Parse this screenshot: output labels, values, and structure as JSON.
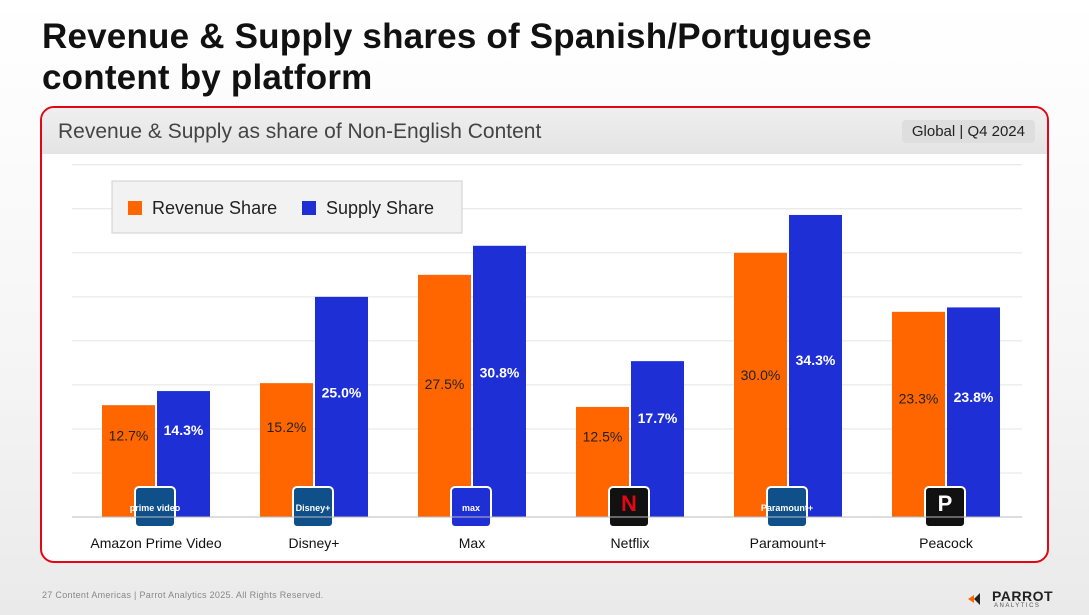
{
  "page": {
    "title": "Revenue & Supply shares of Spanish/Portuguese content by platform",
    "footer": "27  Content Americas  |  Parrot Analytics 2025. All Rights Reserved."
  },
  "card": {
    "title": "Revenue & Supply as share of Non-English Content",
    "scope": "Global  |  Q4 2024"
  },
  "brand": {
    "name": "PARROT",
    "sub": "ANALYTICS"
  },
  "colors": {
    "revenue": "#ff6600",
    "supply": "#1e2fd6",
    "accent": "#e30613"
  },
  "chart_data": {
    "type": "bar",
    "title": "Revenue & Supply as share of Non-English Content",
    "xlabel": "",
    "ylabel": "",
    "ylim": [
      0,
      40
    ],
    "grid": true,
    "legend": "top-left",
    "categories": [
      "Amazon Prime Video",
      "Disney+",
      "Max",
      "Netflix",
      "Paramount+",
      "Peacock"
    ],
    "logos": [
      "prime video",
      "Disney+",
      "max",
      "N",
      "Paramount+",
      "P"
    ],
    "series": [
      {
        "name": "Revenue Share",
        "values": [
          12.7,
          15.2,
          27.5,
          12.5,
          30.0,
          23.3
        ],
        "labels": [
          "12.7%",
          "15.2%",
          "27.5%",
          "12.5%",
          "30.0%",
          "23.3%"
        ]
      },
      {
        "name": "Supply Share",
        "values": [
          14.3,
          25.0,
          30.8,
          17.7,
          34.3,
          23.8
        ],
        "labels": [
          "14.3%",
          "25.0%",
          "30.8%",
          "17.7%",
          "34.3%",
          "23.8%"
        ]
      }
    ]
  }
}
